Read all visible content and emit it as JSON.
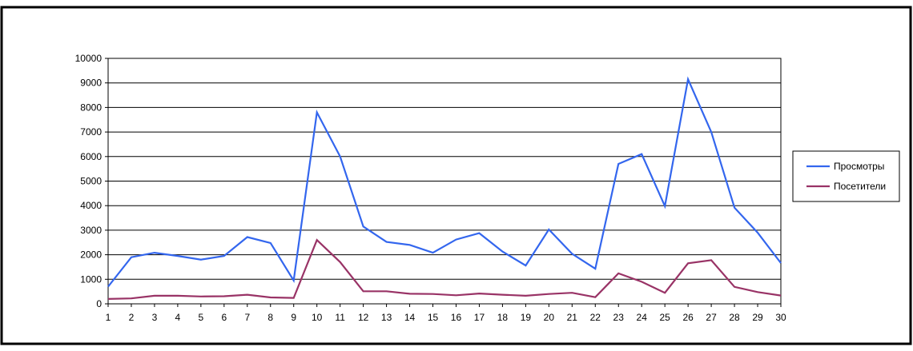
{
  "chart_data": {
    "type": "line",
    "x": [
      1,
      2,
      3,
      4,
      5,
      6,
      7,
      8,
      9,
      10,
      11,
      12,
      13,
      14,
      15,
      16,
      17,
      18,
      19,
      20,
      21,
      22,
      23,
      24,
      25,
      26,
      27,
      28,
      29,
      30
    ],
    "ylim": [
      0,
      10000
    ],
    "yticks": [
      0,
      1000,
      2000,
      3000,
      4000,
      5000,
      6000,
      7000,
      8000,
      9000,
      10000
    ],
    "grid": true,
    "legend_position": "right",
    "series": [
      {
        "name": "Просмотры",
        "color": "#3366ee",
        "values": [
          700,
          1900,
          2080,
          1950,
          1800,
          1950,
          2720,
          2480,
          950,
          7800,
          6000,
          3150,
          2520,
          2400,
          2080,
          2620,
          2880,
          2130,
          1560,
          3030,
          2040,
          1430,
          5700,
          6100,
          3980,
          9150,
          7000,
          3920,
          2900,
          1660
        ]
      },
      {
        "name": "Посетители",
        "color": "#993366",
        "values": [
          200,
          220,
          330,
          330,
          300,
          310,
          370,
          260,
          240,
          2600,
          1700,
          510,
          510,
          410,
          400,
          350,
          420,
          370,
          330,
          400,
          450,
          270,
          1240,
          900,
          450,
          1650,
          1780,
          690,
          480,
          340
        ]
      }
    ]
  }
}
